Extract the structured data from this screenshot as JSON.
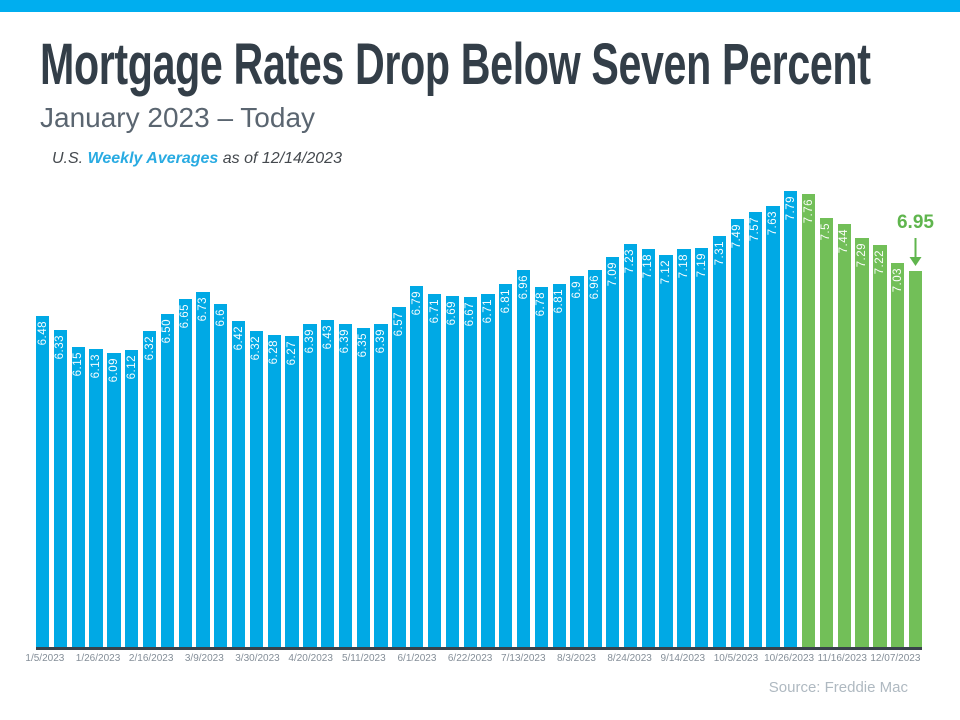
{
  "header": {
    "title": "Mortgage Rates Drop Below Seven Percent",
    "subtitle": "January 2023 – Today",
    "note_prefix": "U.S. ",
    "note_link": "Weekly Averages",
    "note_suffix": " as of 12/14/2023"
  },
  "chart_data": {
    "type": "bar",
    "title": "Mortgage Rates Drop Below Seven Percent",
    "xlabel": "",
    "ylabel": "",
    "grid": false,
    "ylim": [
      3.0,
      7.85
    ],
    "x_tick_labels": [
      "1/5/2023",
      "1/26/2023",
      "2/16/2023",
      "3/9/2023",
      "3/30/2023",
      "4/20/2023",
      "5/11/2023",
      "6/1/2023",
      "6/22/2023",
      "7/13/2023",
      "8/3/2023",
      "8/24/2023",
      "9/14/2023",
      "10/5/2023",
      "10/26/2023",
      "11/16/2023",
      "12/07/2023"
    ],
    "tick_every": 3,
    "values": [
      6.48,
      6.33,
      6.15,
      6.13,
      6.09,
      6.12,
      6.32,
      6.5,
      6.65,
      6.73,
      6.6,
      6.42,
      6.32,
      6.28,
      6.27,
      6.39,
      6.43,
      6.39,
      6.35,
      6.39,
      6.57,
      6.79,
      6.71,
      6.69,
      6.67,
      6.71,
      6.81,
      6.96,
      6.78,
      6.81,
      6.9,
      6.96,
      7.09,
      7.23,
      7.18,
      7.12,
      7.18,
      7.19,
      7.31,
      7.49,
      7.57,
      7.63,
      7.79,
      7.76,
      7.5,
      7.44,
      7.29,
      7.22,
      7.03,
      6.95
    ],
    "bar_labels": [
      "6.48",
      "6.33",
      "6.15",
      "6.13",
      "6.09",
      "6.12",
      "6.32",
      "6.50",
      "6.65",
      "6.73",
      "6.6",
      "6.42",
      "6.32",
      "6.28",
      "6.27",
      "6.39",
      "6.43",
      "6.39",
      "6.35",
      "6.39",
      "6.57",
      "6.79",
      "6.71",
      "6.69",
      "6.67",
      "6.71",
      "6.81",
      "6.96",
      "6.78",
      "6.81",
      "6.9",
      "6.96",
      "7.09",
      "7.23",
      "7.18",
      "7.12",
      "7.18",
      "7.19",
      "7.31",
      "7.49",
      "7.57",
      "7.63",
      "7.79",
      "7.76",
      "7.5",
      "7.44",
      "7.29",
      "7.22",
      "7.03",
      ""
    ],
    "highlight_start_index": 43,
    "colors": {
      "default": "#00A9E5",
      "highlight": "#72BF58",
      "baseline": "#39424B",
      "top_strip": "#00AEEF",
      "title_text": "#333E48",
      "subtitle_text": "#5A6570",
      "link_text": "#29ABE2",
      "tick_text": "#848E98",
      "source_text": "#AFB9C1"
    },
    "annotation": {
      "text": "6.95",
      "color": "#5FB54D",
      "target_index": 49
    }
  },
  "footer": {
    "source": "Source: Freddie Mac"
  }
}
